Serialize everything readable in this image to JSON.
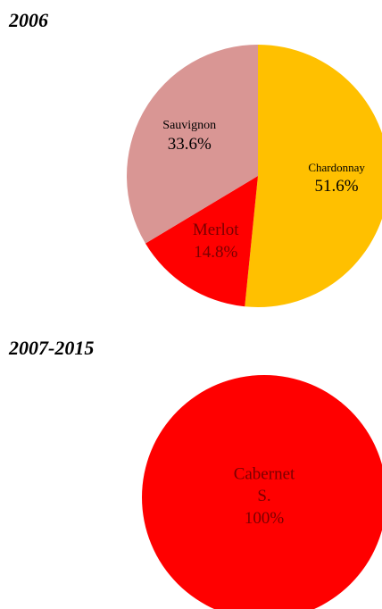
{
  "chart_data": [
    {
      "type": "pie",
      "title": "2006",
      "categories": [
        "Chardonnay",
        "Merlot",
        "Sauvignon"
      ],
      "values": [
        51.6,
        14.8,
        33.6
      ],
      "value_labels": [
        "51.6%",
        "14.8%",
        "33.6%"
      ],
      "colors": [
        "#FFC000",
        "#FF0000",
        "#D99694"
      ]
    },
    {
      "type": "pie",
      "title": "2007-2015",
      "categories": [
        "Cabernet S."
      ],
      "values": [
        100
      ],
      "value_labels": [
        "100%"
      ],
      "colors": [
        "#FF0000"
      ]
    }
  ]
}
